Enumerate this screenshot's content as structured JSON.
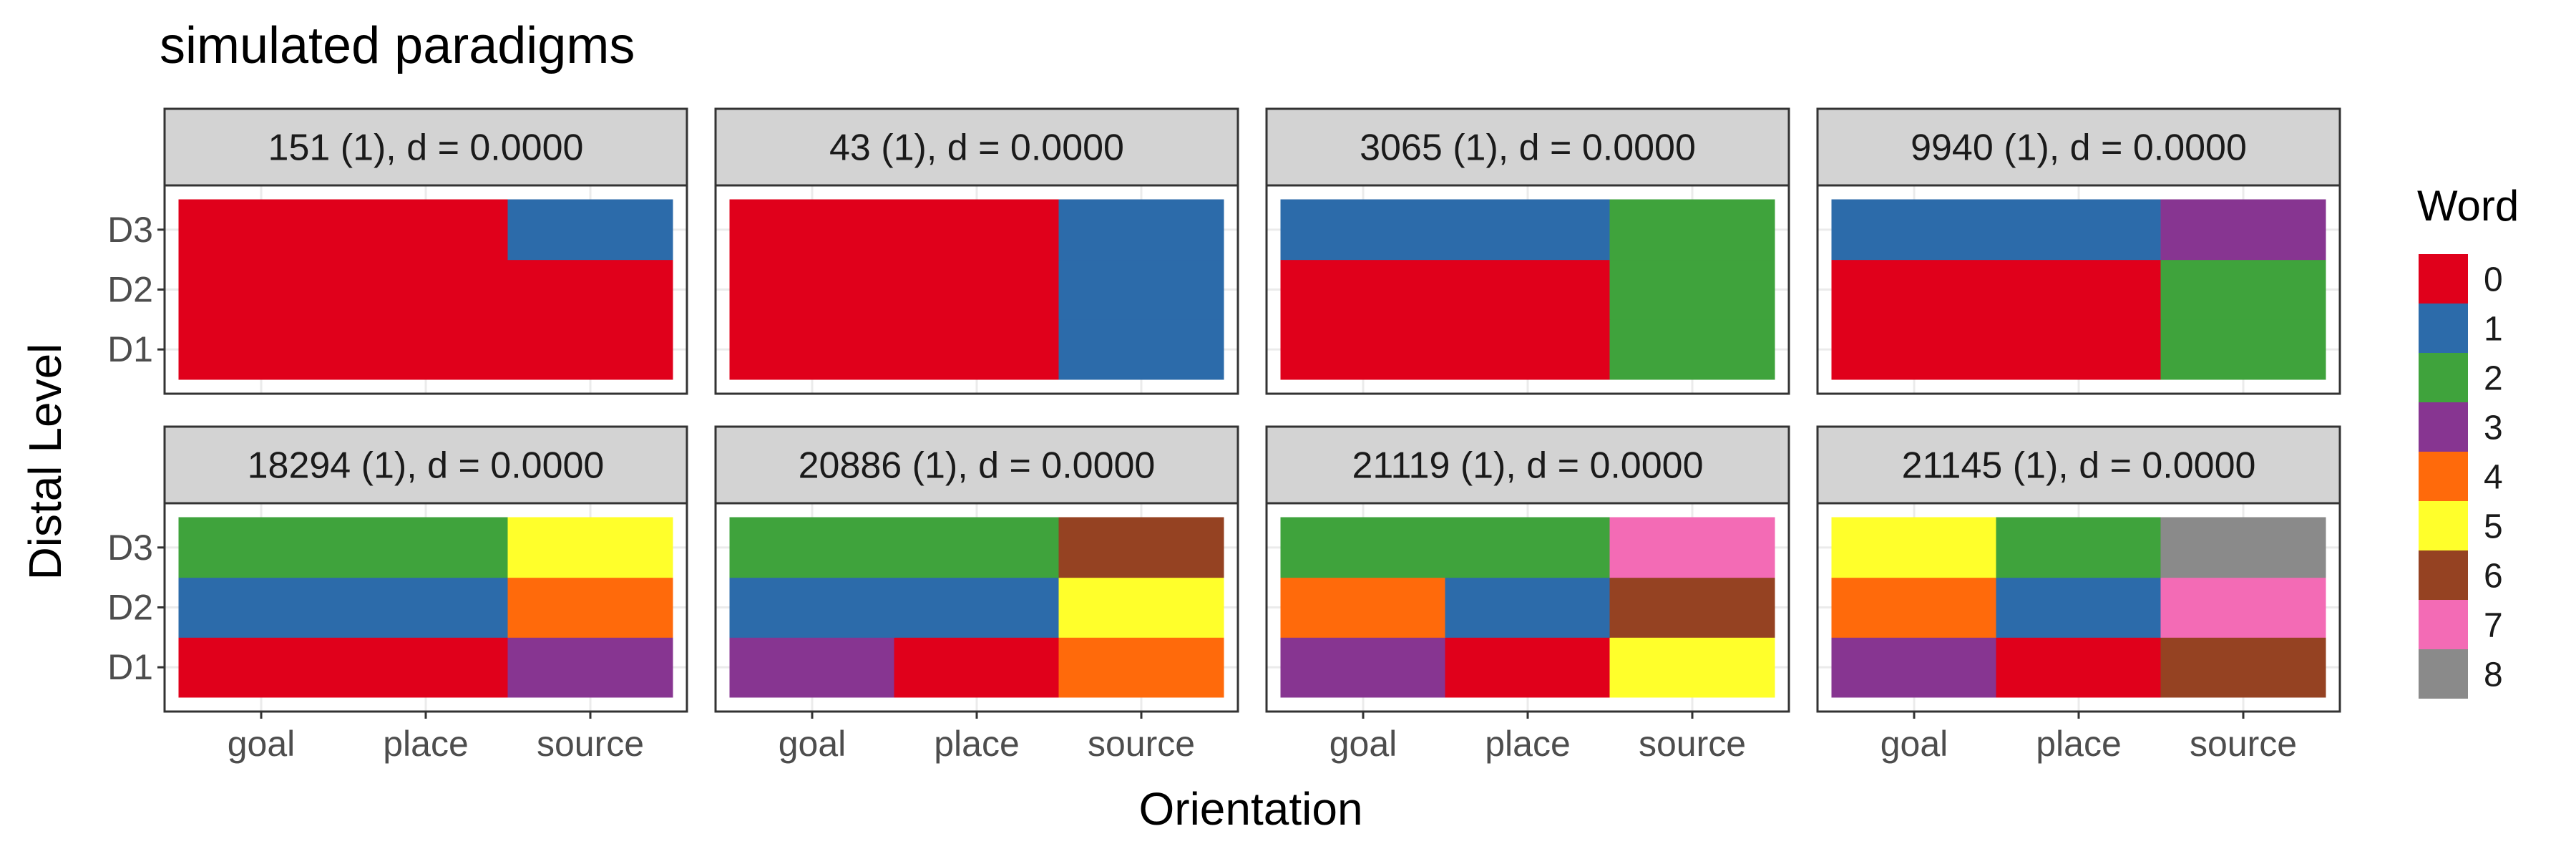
{
  "chart_data": {
    "type": "heatmap",
    "title": "simulated paradigms",
    "xlabel": "Orientation",
    "ylabel": "Distal Level",
    "x_categories": [
      "goal",
      "place",
      "source"
    ],
    "y_categories": [
      "D1",
      "D2",
      "D3"
    ],
    "legend": {
      "title": "Word",
      "position": "right",
      "entries": [
        "0",
        "1",
        "2",
        "3",
        "4",
        "5",
        "6",
        "7",
        "8"
      ],
      "colors": [
        "#E0001B",
        "#2C6BAA",
        "#3FA33C",
        "#873591",
        "#FF6A0B",
        "#FFFF2B",
        "#954222",
        "#F36BB5",
        "#8A8A8A"
      ]
    },
    "grid": true,
    "panels": [
      {
        "label": "151 (1), d = 0.0000",
        "cells": {
          "D1": [
            0,
            0,
            0
          ],
          "D2": [
            0,
            0,
            0
          ],
          "D3": [
            0,
            0,
            1
          ]
        }
      },
      {
        "label": "43 (1), d = 0.0000",
        "cells": {
          "D1": [
            0,
            0,
            1
          ],
          "D2": [
            0,
            0,
            1
          ],
          "D3": [
            0,
            0,
            1
          ]
        }
      },
      {
        "label": "3065 (1), d = 0.0000",
        "cells": {
          "D1": [
            0,
            0,
            2
          ],
          "D2": [
            0,
            0,
            2
          ],
          "D3": [
            1,
            1,
            2
          ]
        }
      },
      {
        "label": "9940 (1), d = 0.0000",
        "cells": {
          "D1": [
            0,
            0,
            2
          ],
          "D2": [
            0,
            0,
            2
          ],
          "D3": [
            1,
            1,
            3
          ]
        }
      },
      {
        "label": "18294 (1), d = 0.0000",
        "cells": {
          "D1": [
            0,
            0,
            3
          ],
          "D2": [
            1,
            1,
            4
          ],
          "D3": [
            2,
            2,
            5
          ]
        }
      },
      {
        "label": "20886 (1), d = 0.0000",
        "cells": {
          "D1": [
            3,
            0,
            4
          ],
          "D2": [
            1,
            1,
            5
          ],
          "D3": [
            2,
            2,
            6
          ]
        }
      },
      {
        "label": "21119 (1), d = 0.0000",
        "cells": {
          "D1": [
            3,
            0,
            5
          ],
          "D2": [
            4,
            1,
            6
          ],
          "D3": [
            2,
            2,
            7
          ]
        }
      },
      {
        "label": "21145 (1), d = 0.0000",
        "cells": {
          "D1": [
            3,
            0,
            6
          ],
          "D2": [
            4,
            1,
            7
          ],
          "D3": [
            5,
            2,
            8
          ]
        }
      }
    ]
  }
}
